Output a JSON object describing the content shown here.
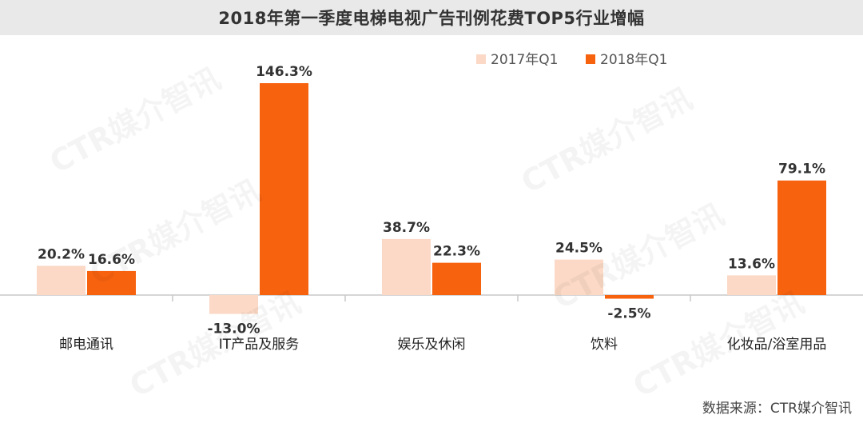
{
  "chart_data": {
    "type": "bar",
    "title": "2018年第一季度电梯电视广告刊例花费TOP5行业增幅",
    "categories": [
      "邮电通讯",
      "IT产品及服务",
      "娱乐及休闲",
      "饮料",
      "化妆品/浴室用品"
    ],
    "series": [
      {
        "name": "2017年Q1",
        "color": "#fbd9c6",
        "values": [
          20.2,
          -13.0,
          38.7,
          24.5,
          13.6
        ],
        "labels": [
          "20.2%",
          "-13.0%",
          "38.7%",
          "24.5%",
          "13.6%"
        ]
      },
      {
        "name": "2018年Q1",
        "color": "#f7620f",
        "values": [
          16.6,
          146.3,
          22.3,
          -2.5,
          79.1
        ],
        "labels": [
          "16.6%",
          "146.3%",
          "22.3%",
          "-2.5%",
          "79.1%"
        ]
      }
    ],
    "ylim": [
      -15,
      150
    ],
    "grid": false,
    "legend_position": "top-right",
    "source": "数据来源：CTR媒介智讯"
  },
  "watermark": "CTR媒介智讯"
}
